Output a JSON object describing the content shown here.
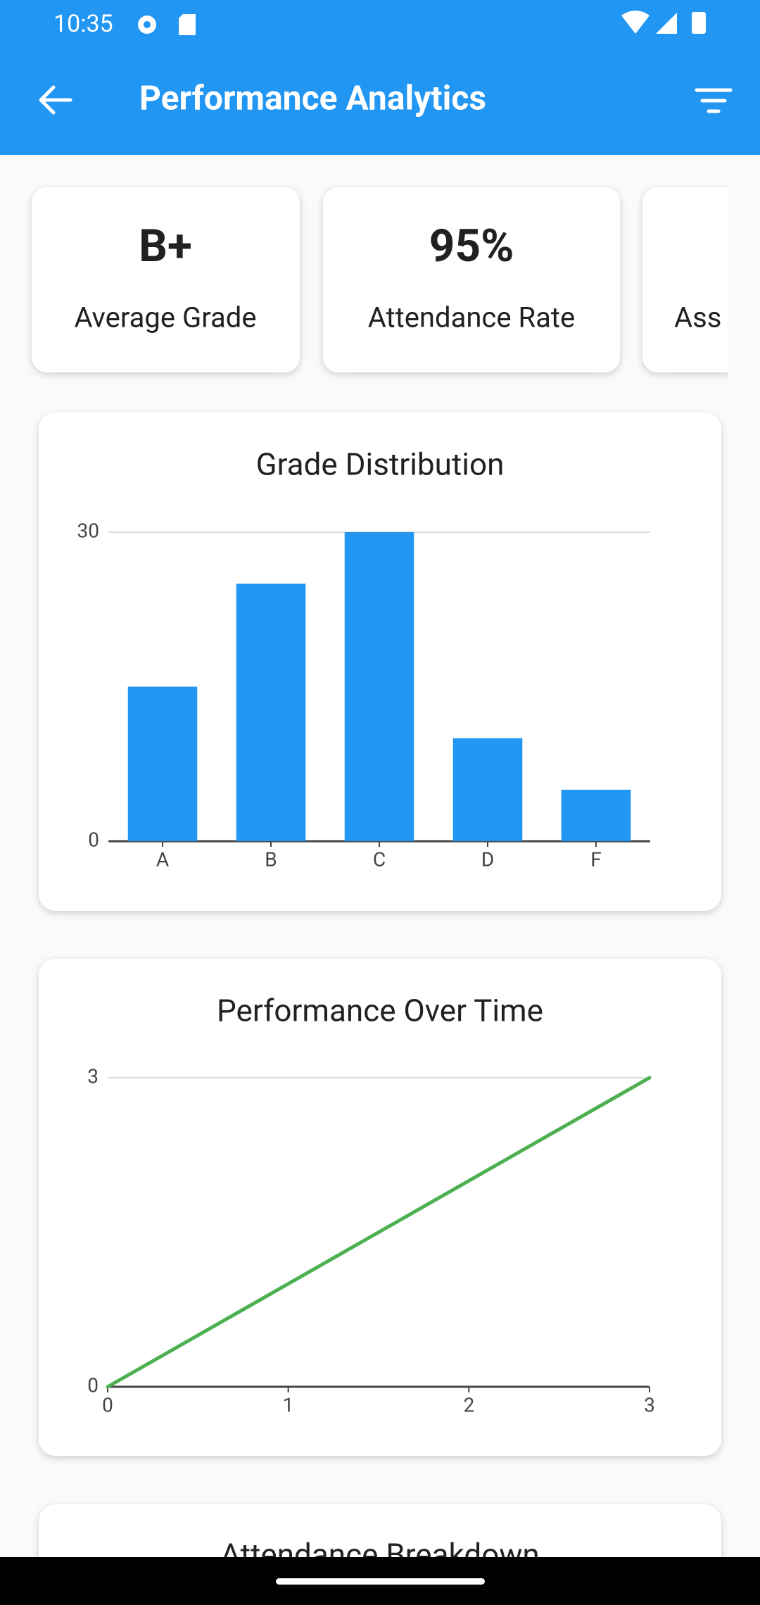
{
  "status_bar": {
    "time": "10:35"
  },
  "app_bar": {
    "title": "Performance Analytics"
  },
  "stat_cards": [
    {
      "value": "B+",
      "label": "Average Grade"
    },
    {
      "value": "95%",
      "label": "Attendance Rate"
    },
    {
      "label": "Ass"
    }
  ],
  "chart_data": [
    {
      "type": "bar",
      "title": "Grade Distribution",
      "categories": [
        "A",
        "B",
        "C",
        "D",
        "F"
      ],
      "values": [
        15,
        25,
        30,
        10,
        5
      ],
      "color": "#2196f3",
      "ylim": [
        0,
        30
      ],
      "yticks": [
        0,
        30
      ],
      "grid": true
    },
    {
      "type": "line",
      "title": "Performance Over Time",
      "x": [
        0,
        1,
        2,
        3
      ],
      "values": [
        0,
        1,
        2,
        3
      ],
      "color": "#4caf50",
      "xlim": [
        0,
        3
      ],
      "xticks": [
        0,
        1,
        2,
        3
      ],
      "ylim": [
        0,
        3
      ],
      "yticks": [
        0,
        3
      ],
      "grid": true
    }
  ],
  "next_card": {
    "title": "Attendance Breakdown"
  }
}
